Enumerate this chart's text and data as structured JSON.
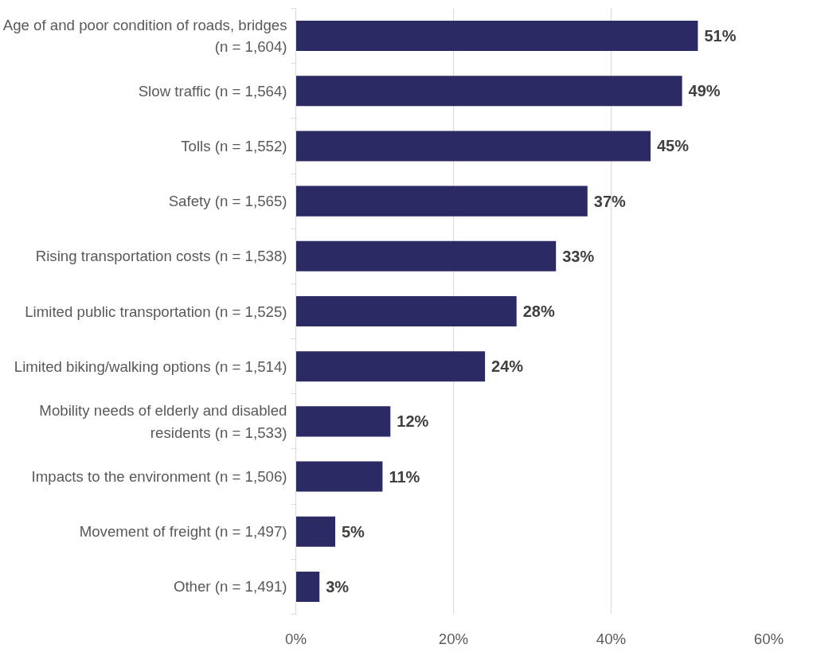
{
  "chart_data": {
    "type": "bar",
    "orientation": "horizontal",
    "categories": [
      "Age of and poor condition of roads, bridges (n = 1,604)",
      "Slow traffic (n = 1,564)",
      "Tolls (n = 1,552)",
      "Safety (n = 1,565)",
      "Rising transportation costs (n = 1,538)",
      "Limited public transportation (n = 1,525)",
      "Limited biking/walking options (n = 1,514)",
      "Mobility needs of elderly and disabled residents (n = 1,533)",
      "Impacts to the environment (n = 1,506)",
      "Movement of freight (n = 1,497)",
      "Other (n = 1,491)"
    ],
    "values": [
      51,
      49,
      45,
      37,
      33,
      28,
      24,
      12,
      11,
      5,
      3
    ],
    "color": "#2b2a64",
    "xlim": [
      0,
      60
    ],
    "xticks": [
      {
        "value": 0,
        "label": "0%"
      },
      {
        "value": 20,
        "label": "20%"
      },
      {
        "value": 40,
        "label": "40%"
      },
      {
        "value": 60,
        "label": "60%"
      }
    ],
    "value_labels": [
      "51%",
      "49%",
      "45%",
      "37%",
      "33%",
      "28%",
      "24%",
      "12%",
      "11%",
      "5%",
      "3%"
    ],
    "grid": "x"
  }
}
